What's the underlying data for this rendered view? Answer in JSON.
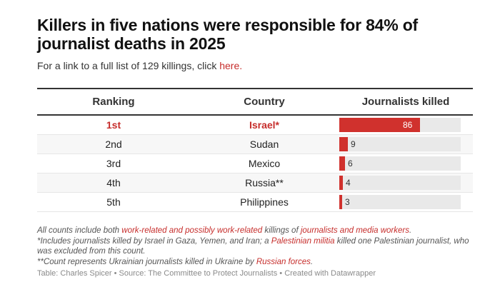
{
  "title": "Killers in five nations were responsible for 84% of journalist deaths in 2025",
  "subtitle": {
    "text": "For a link to a full list of 129 killings, click ",
    "link": "here."
  },
  "colors": {
    "accent": "#d0312d",
    "track": "#e9e9e9",
    "highlight_text": "#c62d2b"
  },
  "table": {
    "headers": [
      "Ranking",
      "Country",
      "Journalists killed"
    ],
    "rows": [
      {
        "rank": "1st",
        "country": "Israel*",
        "killed": 86,
        "highlight": true
      },
      {
        "rank": "2nd",
        "country": "Sudan",
        "killed": 9,
        "highlight": false
      },
      {
        "rank": "3rd",
        "country": "Mexico",
        "killed": 6,
        "highlight": false
      },
      {
        "rank": "4th",
        "country": "Russia**",
        "killed": 4,
        "highlight": false
      },
      {
        "rank": "5th",
        "country": "Philippines",
        "killed": 3,
        "highlight": false
      }
    ]
  },
  "chart_data": {
    "type": "table",
    "title": "Killers in five nations were responsible for 84% of journalist deaths in 2025",
    "columns": [
      "Ranking",
      "Country",
      "Journalists killed"
    ],
    "categories": [
      "Israel*",
      "Sudan",
      "Mexico",
      "Russia**",
      "Philippines"
    ],
    "rankings": [
      "1st",
      "2nd",
      "3rd",
      "4th",
      "5th"
    ],
    "values": [
      86,
      9,
      6,
      4,
      3
    ],
    "bar_domain": [
      0,
      129
    ],
    "xlabel": "",
    "ylabel": "Journalists killed"
  },
  "notes": [
    [
      {
        "t": "All counts include both "
      },
      {
        "t": "work-related and possibly work-related",
        "hl": true
      },
      {
        "t": " killings of "
      },
      {
        "t": "journalists and media workers",
        "hl": true
      },
      {
        "t": "."
      }
    ],
    [
      {
        "t": "*Includes journalists killed by Israel in Gaza, Yemen, and Iran; a "
      },
      {
        "t": "Palestinian militia",
        "hl": true
      },
      {
        "t": " killed one Palestinian journalist, who was excluded from this count."
      }
    ],
    [
      {
        "t": "**Count represents Ukrainian journalists killed in Ukraine by "
      },
      {
        "t": "Russian forces",
        "hl": true
      },
      {
        "t": "."
      }
    ]
  ],
  "credit": "Table: Charles Spicer • Source: The Committee to Protect Journalists • Created with Datawrapper"
}
